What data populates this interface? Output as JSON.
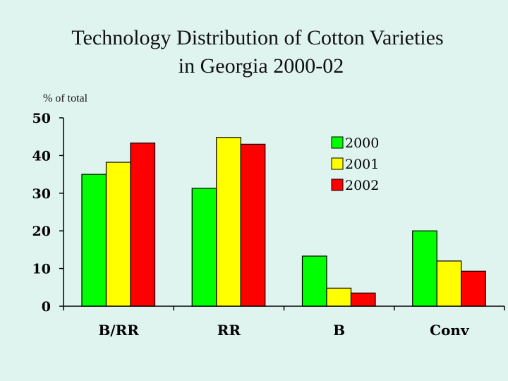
{
  "chart_data": {
    "type": "bar",
    "title_line1": "Technology Distribution of Cotton Varieties",
    "title_line2": "in Georgia 2000-02",
    "ylabel": "% of total",
    "xlabel": "",
    "categories": [
      "B/RR",
      "RR",
      "B",
      "Conv"
    ],
    "series": [
      {
        "name": "2000",
        "color": "#00ff00",
        "values": [
          35,
          31.3,
          13.3,
          20
        ]
      },
      {
        "name": "2001",
        "color": "#ffff00",
        "values": [
          38.2,
          44.8,
          4.8,
          12
        ]
      },
      {
        "name": "2002",
        "color": "#ff0000",
        "values": [
          43.3,
          43,
          3.5,
          9.3
        ]
      }
    ],
    "ylim": [
      0,
      50
    ],
    "yticks": [
      0,
      10,
      20,
      30,
      40,
      50
    ],
    "legend_position": "top-right",
    "grid": false
  }
}
